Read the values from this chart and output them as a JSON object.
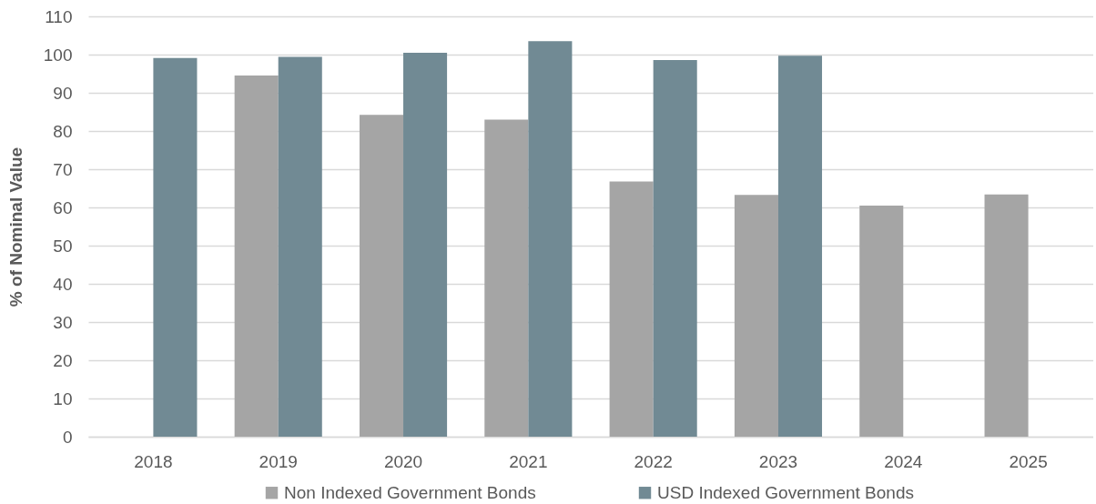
{
  "chart_data": {
    "type": "bar",
    "ylabel": "% of Nominal Value",
    "categories": [
      "2018",
      "2019",
      "2020",
      "2021",
      "2022",
      "2023",
      "2024",
      "2025"
    ],
    "series": [
      {
        "name": "Non Indexed Government Bonds",
        "color": "#a5a5a5",
        "values": [
          null,
          94.5,
          84.2,
          83.0,
          66.8,
          63.3,
          60.5,
          63.4
        ]
      },
      {
        "name": "USD Indexed Government Bonds",
        "color": "#718a94",
        "values": [
          99.1,
          99.4,
          100.5,
          103.5,
          98.6,
          99.7,
          null,
          null
        ]
      }
    ],
    "ylim": [
      0,
      110
    ],
    "yticks": [
      0,
      10,
      20,
      30,
      40,
      50,
      60,
      70,
      80,
      90,
      100,
      110
    ],
    "grid": "y",
    "legend": "bottom"
  }
}
